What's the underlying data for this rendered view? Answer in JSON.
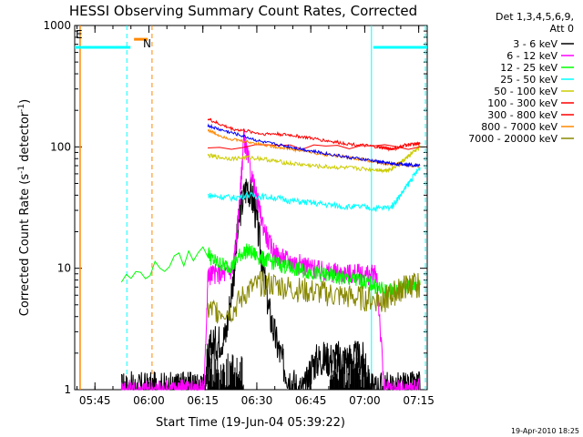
{
  "chart_data": {
    "type": "line",
    "title": "HESSI Observing Summary Count Rates, Corrected",
    "ylabel_main": "Corrected Count Rate (s",
    "ylabel_sup1": "-1",
    "ylabel_mid": " detector",
    "ylabel_sup2": "-1",
    "ylabel_end": ")",
    "xlabel": "Start Time (19-Jun-04 05:39:22)",
    "yscale": "log",
    "ylim": [
      1,
      1000
    ],
    "xlim_min": [
      0,
      98
    ],
    "x_start": "05:39:22",
    "x_ticks": [
      {
        "min": 5.63,
        "label": "05:45"
      },
      {
        "min": 20.63,
        "label": "06:00"
      },
      {
        "min": 35.63,
        "label": "06:15"
      },
      {
        "min": 50.63,
        "label": "06:30"
      },
      {
        "min": 65.63,
        "label": "06:45"
      },
      {
        "min": 80.63,
        "label": "07:00"
      },
      {
        "min": 95.63,
        "label": "07:15"
      }
    ],
    "y_ticks": [
      {
        "v": 1,
        "label": "1"
      },
      {
        "v": 10,
        "label": "10"
      },
      {
        "v": 100,
        "label": "100"
      },
      {
        "v": 1000,
        "label": "1000"
      }
    ],
    "legend_header_1": "Det 1,3,4,5,6,9,",
    "legend_header_2": "Att 0",
    "legend_placement": "right",
    "flags": {
      "eclipse": "E",
      "night": "N"
    },
    "series": [
      {
        "name": "3 - 6 keV",
        "color": "#000000",
        "x": [
          13,
          14,
          16,
          18,
          20,
          22,
          24,
          26,
          28,
          29,
          30,
          31,
          32,
          33,
          34,
          35,
          36,
          37,
          38,
          40,
          42,
          44,
          46,
          48,
          50,
          52,
          54,
          56,
          58,
          60,
          62,
          64,
          66,
          68,
          70,
          72,
          74,
          76,
          78,
          80,
          82,
          84,
          86,
          88,
          90,
          92,
          94,
          96
        ],
        "y": [
          1.0,
          1.0,
          1.0,
          1.0,
          1.0,
          1.0,
          1.0,
          1.0,
          1.0,
          1.0,
          1.0,
          1.0,
          1.0,
          1.0,
          1.0,
          1.0,
          1.0,
          1.8,
          2.3,
          2.5,
          2.8,
          8,
          30,
          50,
          32,
          12,
          4.5,
          2.5,
          1.6,
          1.2,
          1.0,
          1.0,
          1.6,
          1.8,
          1.8,
          1.8,
          1.8,
          1.8,
          1.8,
          1.8,
          1.0,
          1.0,
          1.0,
          1.0,
          1.0,
          1.0,
          1.0,
          1.0
        ]
      },
      {
        "name": "6 - 12 keV",
        "color": "#ff00ff",
        "x": [
          13,
          14,
          16,
          18,
          20,
          22,
          24,
          26,
          28,
          29,
          30,
          31,
          32,
          33,
          34,
          35,
          36,
          37,
          38,
          40,
          42,
          44,
          45,
          46,
          47,
          48,
          50,
          52,
          54,
          56,
          58,
          60,
          62,
          64,
          66,
          68,
          70,
          72,
          74,
          76,
          78,
          80,
          82,
          84,
          86,
          88,
          90,
          92,
          94,
          96
        ],
        "y": [
          1.0,
          1.0,
          1.0,
          1.0,
          1.0,
          1.0,
          1.0,
          1.0,
          1.0,
          1.0,
          1.0,
          1.0,
          1.0,
          1.0,
          1.0,
          1.0,
          1.0,
          8.5,
          9.0,
          9.0,
          9.0,
          10,
          18,
          40,
          120,
          85,
          45,
          25,
          16,
          13,
          12,
          11.5,
          11,
          10.5,
          10,
          9.5,
          9.3,
          9.2,
          9.0,
          9.0,
          9.0,
          8.9,
          8.8,
          8.8,
          1.0,
          1.0,
          1.0,
          1.0,
          1.0,
          1.0
        ]
      },
      {
        "name": "12 - 25 keV",
        "color": "#00ff00",
        "x": [
          13,
          37,
          38,
          40,
          42,
          44,
          46,
          48,
          50,
          52,
          54,
          56,
          58,
          60,
          62,
          64,
          66,
          68,
          70,
          72,
          74,
          76,
          78,
          80,
          82,
          84,
          86,
          88,
          90,
          92,
          94,
          96
        ],
        "y": [
          8,
          14,
          12,
          11,
          10.5,
          10.5,
          13,
          14,
          13,
          12,
          11.5,
          11,
          10.5,
          10,
          9.8,
          9.5,
          9.3,
          9.0,
          8.8,
          8.5,
          8.3,
          8.2,
          8.0,
          7.8,
          7.5,
          7.0,
          6.5,
          6.5,
          6.8,
          7.0,
          7.2,
          7.3
        ]
      },
      {
        "name": "25 - 50 keV",
        "color": "#00ffff",
        "x": [
          37,
          40,
          44,
          48,
          52,
          56,
          60,
          64,
          68,
          72,
          76,
          80,
          84,
          88,
          90,
          92,
          94,
          96
        ],
        "y": [
          40,
          39,
          38,
          40,
          39,
          38,
          36,
          35,
          34,
          33,
          32,
          32,
          31,
          32,
          38,
          46,
          56,
          68
        ]
      },
      {
        "name": "50 - 100 keV",
        "color": "#cccc00",
        "x": [
          37,
          40,
          44,
          48,
          52,
          56,
          60,
          64,
          68,
          72,
          76,
          80,
          84,
          86,
          88,
          90,
          92,
          94,
          96
        ],
        "y": [
          85,
          82,
          80,
          82,
          80,
          76,
          73,
          71,
          69,
          68,
          67,
          66,
          65,
          64,
          66,
          72,
          80,
          90,
          100
        ]
      },
      {
        "name": "100 - 300 keV",
        "color": "#ff0000",
        "x": [
          37,
          40,
          44,
          48,
          52,
          56,
          60,
          64,
          68,
          72,
          76,
          80,
          84,
          86,
          88,
          90,
          92,
          94,
          96
        ],
        "y": [
          170,
          155,
          140,
          135,
          128,
          128,
          125,
          120,
          115,
          110,
          106,
          103,
          100,
          98,
          96,
          98,
          104,
          105,
          106
        ]
      },
      {
        "name": "300 - 800 keV",
        "color": "#ff0000",
        "x": [
          37,
          96
        ],
        "y": [
          100,
          100
        ]
      },
      {
        "name": "800 - 7000 keV",
        "color": "#ff8800",
        "x": [
          37,
          40,
          44,
          48,
          52,
          56,
          60,
          64,
          68,
          72,
          76,
          80,
          84,
          86,
          88,
          90,
          92,
          94,
          96
        ],
        "y": [
          138,
          125,
          115,
          110,
          105,
          100,
          96,
          92,
          88,
          85,
          82,
          79,
          75,
          73,
          72,
          72,
          71,
          70,
          70
        ]
      },
      {
        "name": "7000 - 20000 keV",
        "color": "#888800",
        "x": [
          37,
          40,
          44,
          48,
          52,
          56,
          60,
          64,
          68,
          72,
          76,
          80,
          84,
          86,
          88,
          90,
          92,
          94,
          96
        ],
        "y": [
          4.5,
          4.5,
          4.5,
          6.5,
          7.5,
          7.3,
          6.8,
          6.5,
          6.3,
          6.0,
          5.8,
          5.6,
          5.5,
          5.5,
          6.0,
          6.5,
          7.0,
          7.3,
          7.3
        ]
      }
    ],
    "blue_series_color": "#0000ff",
    "blue_series": {
      "x": [
        37,
        40,
        44,
        48,
        52,
        56,
        60,
        64,
        68,
        72,
        76,
        80,
        84,
        86,
        88,
        90,
        92,
        94,
        96
      ],
      "y": [
        150,
        140,
        130,
        120,
        110,
        105,
        100,
        95,
        90,
        86,
        82,
        79,
        76,
        74,
        73,
        72,
        72,
        71,
        71
      ]
    },
    "eclipse_segments": [
      {
        "x": [
          0,
          15.5
        ],
        "y": 660
      },
      {
        "x": [
          16.5,
          20.3
        ],
        "y": 770
      },
      {
        "x": [
          83,
          98
        ],
        "y": 660
      }
    ],
    "markers": [
      {
        "min": 14.5,
        "color": "#00ffff",
        "style": "dashed"
      },
      {
        "min": 21.5,
        "color": "#ff8800",
        "style": "dashed"
      },
      {
        "min": 82.5,
        "color": "#00ffff",
        "style": "solid"
      },
      {
        "min": 97.5,
        "color": "#00ffff",
        "style": "dashed"
      }
    ],
    "footer_timestamp": "19-Apr-2010 18:25"
  }
}
